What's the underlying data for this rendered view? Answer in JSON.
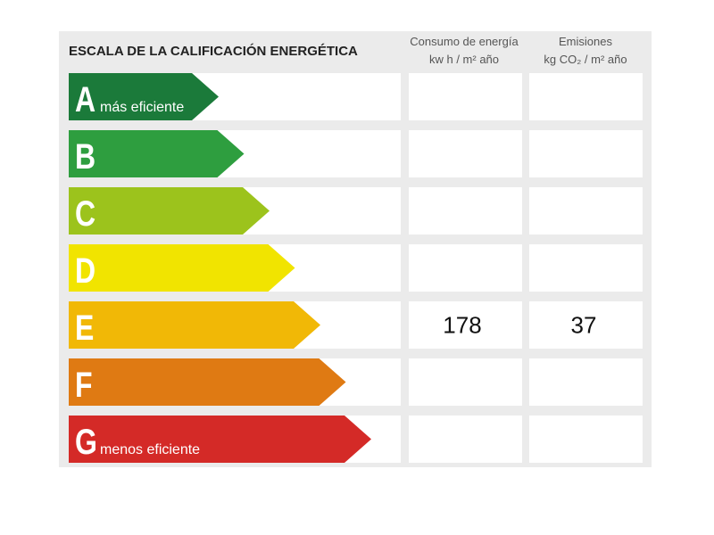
{
  "header": {
    "title": "ESCALA DE LA CALIFICACIÓN ENERGÉTICA",
    "columns": [
      {
        "line1": "Consumo de energía",
        "line2": "kw h / m² año"
      },
      {
        "line1": "Emisiones",
        "line2": "kg CO₂ / m² año"
      }
    ]
  },
  "rows": [
    {
      "letter": "A",
      "note": "más eficiente"
    },
    {
      "letter": "B"
    },
    {
      "letter": "C"
    },
    {
      "letter": "D"
    },
    {
      "letter": "E",
      "consumption": 178,
      "emissions": 37
    },
    {
      "letter": "F"
    },
    {
      "letter": "G",
      "note": "menos eficiente"
    }
  ]
}
